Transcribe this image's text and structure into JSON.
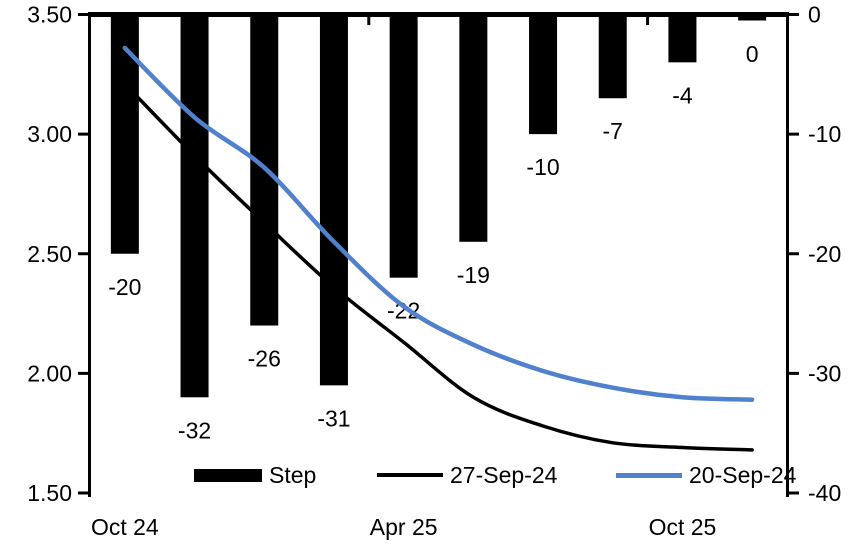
{
  "chart_data": {
    "type": "combo-bar-line",
    "title": "",
    "categories_count": 10,
    "x_tick_labels": [
      {
        "index": 0,
        "label": "Oct 24"
      },
      {
        "index": 4,
        "label": "Apr 25"
      },
      {
        "index": 8,
        "label": "Oct 25"
      }
    ],
    "bar_series": {
      "name": "Step",
      "axis": "right",
      "color": "#000000",
      "values": [
        -20,
        -32,
        -26,
        -31,
        -22,
        -19,
        -10,
        -7,
        -4,
        0
      ],
      "labels": [
        "-20",
        "-32",
        "-26",
        "-31",
        "-22",
        "-19",
        "-10",
        "-7",
        "-4",
        "0"
      ]
    },
    "line_series": [
      {
        "name": "27-Sep-24",
        "axis": "left",
        "color": "#000000",
        "stroke_width": 3.5,
        "values": [
          3.21,
          2.91,
          2.63,
          2.36,
          2.13,
          1.9,
          1.78,
          1.71,
          1.69,
          1.68
        ]
      },
      {
        "name": "20-Sep-24",
        "axis": "left",
        "color": "#5181CD",
        "stroke_width": 4.5,
        "values": [
          3.36,
          3.07,
          2.86,
          2.55,
          2.28,
          2.12,
          2.01,
          1.94,
          1.9,
          1.89
        ]
      }
    ],
    "left_axis": {
      "min": 1.5,
      "max": 3.5,
      "ticks": [
        "3.50",
        "3.00",
        "2.50",
        "2.00",
        "1.50"
      ]
    },
    "right_axis": {
      "min": -40,
      "max": 0,
      "ticks": [
        "0",
        "-10",
        "-20",
        "-30",
        "-40"
      ]
    },
    "legend": {
      "position": "bottom-inside",
      "entries": [
        "Step",
        "27-Sep-24",
        "20-Sep-24"
      ]
    },
    "grid": "off",
    "axis_color": "#000000",
    "text_color": "#000000"
  }
}
